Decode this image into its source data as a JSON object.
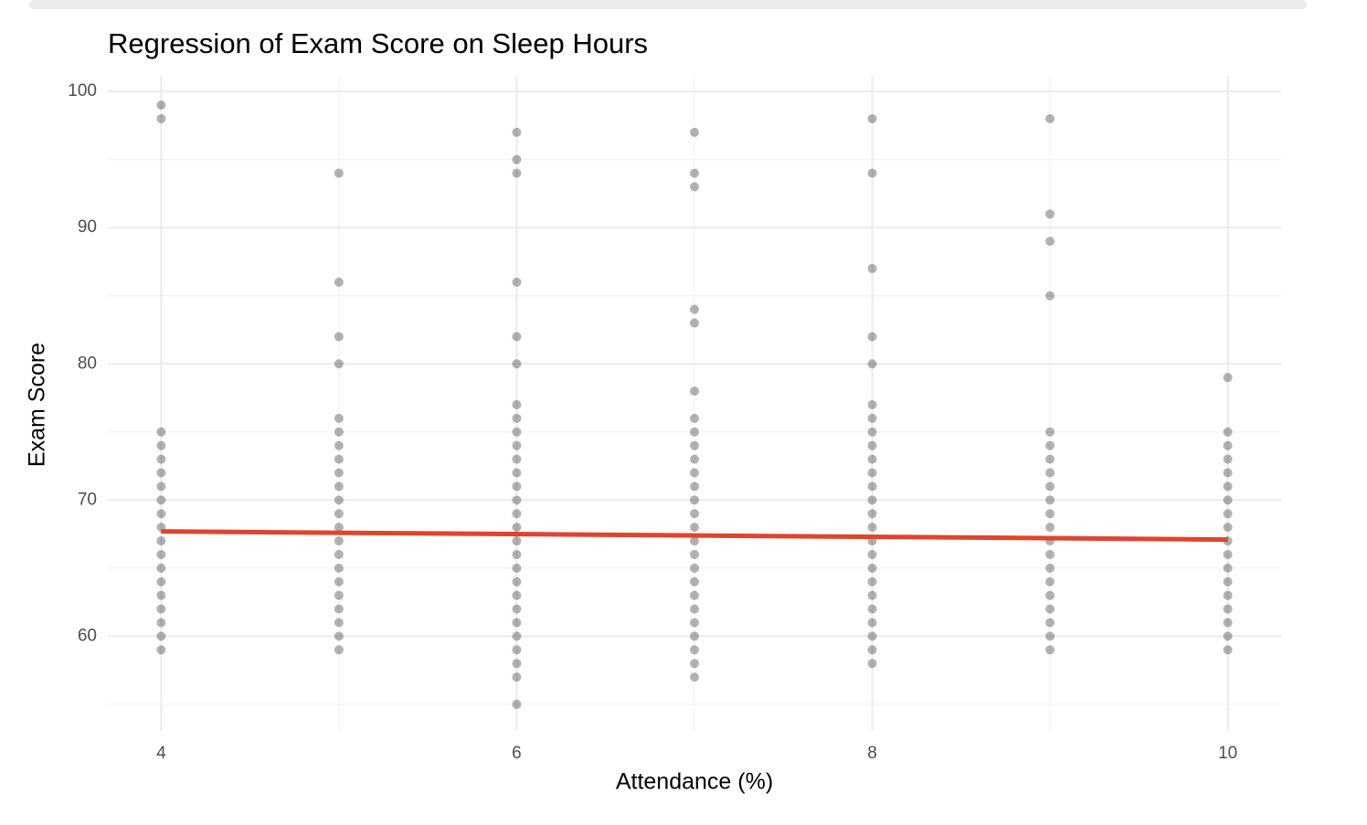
{
  "chart_data": {
    "type": "scatter",
    "title": "Regression of Exam Score on Sleep Hours",
    "x_label": "Attendance (%)",
    "y_label": "Exam Score",
    "xlim": [
      3.7,
      10.3
    ],
    "ylim": [
      53.05,
      101.15
    ],
    "xticks": [
      4,
      6,
      8,
      10
    ],
    "yticks": [
      60,
      70,
      80,
      90,
      100
    ],
    "minor_xticks": [
      5,
      7,
      9
    ],
    "minor_yticks": [
      55,
      65,
      75,
      85,
      95
    ],
    "grid": true,
    "series": [
      {
        "type": "scatter",
        "color": "#000000",
        "alpha": 0.3,
        "x": [
          4,
          4,
          4,
          4,
          4,
          4,
          4,
          4,
          4,
          4,
          4,
          4,
          4,
          4,
          4,
          4,
          4,
          4,
          4,
          5,
          5,
          5,
          5,
          5,
          5,
          5,
          5,
          5,
          5,
          5,
          5,
          5,
          5,
          5,
          5,
          5,
          5,
          5,
          5,
          5,
          5,
          6,
          6,
          6,
          6,
          6,
          6,
          6,
          6,
          6,
          6,
          6,
          6,
          6,
          6,
          6,
          6,
          6,
          6,
          6,
          6,
          6,
          6,
          6,
          6,
          6,
          6,
          6,
          6,
          7,
          7,
          7,
          7,
          7,
          7,
          7,
          7,
          7,
          7,
          7,
          7,
          7,
          7,
          7,
          7,
          7,
          7,
          7,
          7,
          7,
          7,
          7,
          7,
          7,
          7,
          8,
          8,
          8,
          8,
          8,
          8,
          8,
          8,
          8,
          8,
          8,
          8,
          8,
          8,
          8,
          8,
          8,
          8,
          8,
          8,
          8,
          8,
          8,
          8,
          8,
          9,
          9,
          9,
          9,
          9,
          9,
          9,
          9,
          9,
          9,
          9,
          9,
          9,
          9,
          9,
          9,
          9,
          9,
          9,
          9,
          9,
          10,
          10,
          10,
          10,
          10,
          10,
          10,
          10,
          10,
          10,
          10,
          10,
          10,
          10,
          10,
          10,
          10,
          10
        ],
        "values": [
          99,
          98,
          75,
          74,
          73,
          72,
          71,
          70,
          69,
          68,
          67,
          66,
          65,
          64,
          63,
          62,
          61,
          60,
          59,
          94,
          86,
          82,
          80,
          76,
          75,
          74,
          73,
          72,
          71,
          70,
          69,
          68,
          67,
          66,
          65,
          64,
          63,
          62,
          61,
          60,
          59,
          97,
          95,
          94,
          86,
          82,
          80,
          77,
          76,
          75,
          74,
          73,
          72,
          71,
          70,
          69,
          68,
          67,
          66,
          65,
          64,
          63,
          62,
          61,
          60,
          59,
          58,
          57,
          55,
          97,
          94,
          93,
          84,
          83,
          78,
          76,
          75,
          74,
          73,
          72,
          71,
          70,
          69,
          68,
          67,
          66,
          65,
          64,
          63,
          62,
          61,
          60,
          59,
          58,
          57,
          98,
          94,
          87,
          82,
          80,
          77,
          76,
          75,
          74,
          73,
          72,
          71,
          70,
          69,
          68,
          67,
          66,
          65,
          64,
          63,
          62,
          61,
          60,
          59,
          58,
          98,
          91,
          89,
          85,
          75,
          74,
          73,
          72,
          71,
          70,
          69,
          68,
          67,
          66,
          65,
          64,
          63,
          62,
          61,
          60,
          59,
          79,
          75,
          74,
          73,
          72,
          71,
          70,
          69,
          68,
          67,
          66,
          65,
          64,
          63,
          62,
          61,
          60,
          59
        ]
      },
      {
        "type": "line",
        "color": "#e0442c",
        "x": [
          4,
          10
        ],
        "values": [
          67.7,
          67.1
        ]
      }
    ]
  }
}
